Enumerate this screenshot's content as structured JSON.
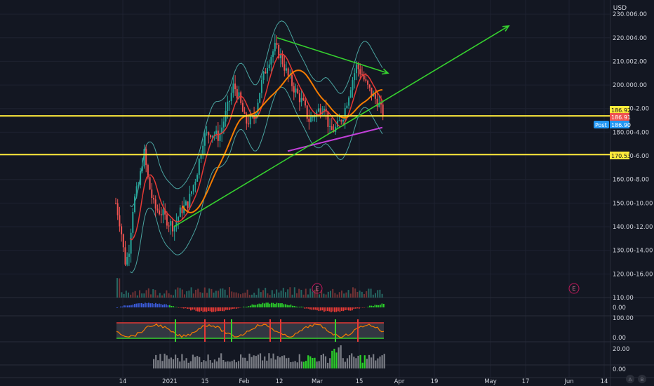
{
  "chart_data": {
    "type": "candlestick",
    "currency": "USD",
    "price_axis": {
      "ticks": [
        "230.00",
        "220.00",
        "210.00",
        "200.00",
        "190.00",
        "180.00",
        "170.00",
        "160.00",
        "150.00",
        "140.00",
        "130.00",
        "120.00",
        "110.00"
      ],
      "values": [
        230,
        220,
        210,
        200,
        190,
        180,
        170,
        160,
        150,
        140,
        130,
        120,
        110
      ],
      "range": [
        110,
        233
      ]
    },
    "secondary_axis": {
      "ticks": [
        "6.00",
        "4.00",
        "2.00",
        "0.00",
        "-2.00",
        "-4.00",
        "-6.00",
        "-8.00",
        "-10.00",
        "-12.00",
        "-14.00",
        "-16.00"
      ],
      "values": [
        6,
        4,
        2,
        0,
        -2,
        -4,
        -6,
        -8,
        -10,
        -12,
        -14,
        -16
      ]
    },
    "time_axis": {
      "ticks": [
        "14",
        "2021",
        "15",
        "Feb",
        "12",
        "Mar",
        "15",
        "Apr",
        "19",
        "May",
        "17",
        "Jun",
        "14"
      ]
    },
    "price_labels": [
      {
        "text": "186.92",
        "value": 186.92,
        "kind": "level",
        "color": "#ffeb3b"
      },
      {
        "text": "186.91",
        "value": 186.91,
        "kind": "last",
        "color": "#ef5350"
      },
      {
        "text": "186.90",
        "value": 186.9,
        "kind": "post",
        "color": "#2196f3",
        "prefix": "Post"
      },
      {
        "text": "170.53",
        "value": 170.53,
        "kind": "level",
        "color": "#ffeb3b"
      }
    ],
    "horizontal_levels": [
      186.92,
      170.53
    ],
    "earnings_markers": [
      "E",
      "E"
    ],
    "panes": {
      "macd": {
        "ticks": [
          "0.00"
        ]
      },
      "oscillator": {
        "ticks": [
          "100.00",
          "0.00"
        ]
      },
      "volume2": {
        "ticks": [
          "20.00",
          "0.00"
        ]
      }
    },
    "watermark_icons": [
      "A",
      "B"
    ],
    "colors": {
      "background": "#131722",
      "grid": "#1e2230",
      "up": "#26a69a",
      "down": "#ef5350",
      "trendline": "#36d12f",
      "level": "#ffeb3b",
      "ma_red": "#e53935",
      "ma_orange": "#f57c00",
      "ma_purple": "#c13fd8",
      "band": "#4aa3a0",
      "axis_text": "#d1d4dc"
    }
  }
}
